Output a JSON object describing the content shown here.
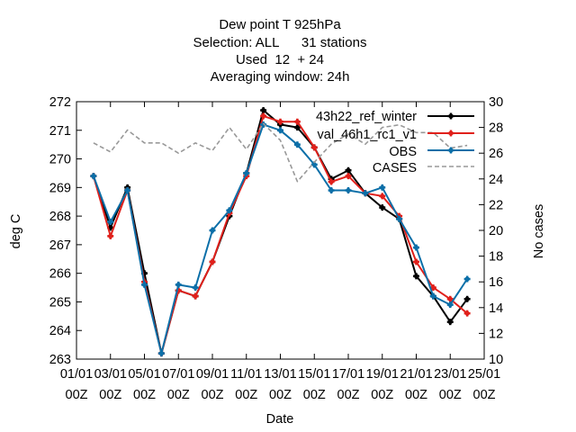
{
  "chart_data": {
    "type": "line",
    "title_lines": [
      "Dew point T 925hPa",
      "Selection: ALL      31 stations",
      "Used  12  + 24",
      "Averaging window: 24h"
    ],
    "xlabel": "Date",
    "ylabel": "deg C",
    "y2label": "No cases",
    "x_ticks": [
      {
        "day": 1,
        "line1": "01/01",
        "line2": "00Z"
      },
      {
        "day": 3,
        "line1": "03/01",
        "line2": "00Z"
      },
      {
        "day": 5,
        "line1": "05/01",
        "line2": "00Z"
      },
      {
        "day": 7,
        "line1": "07/01",
        "line2": "00Z"
      },
      {
        "day": 9,
        "line1": "09/01",
        "line2": "00Z"
      },
      {
        "day": 11,
        "line1": "11/01",
        "line2": "00Z"
      },
      {
        "day": 13,
        "line1": "13/01",
        "line2": "00Z"
      },
      {
        "day": 15,
        "line1": "15/01",
        "line2": "00Z"
      },
      {
        "day": 17,
        "line1": "17/01",
        "line2": "00Z"
      },
      {
        "day": 19,
        "line1": "19/01",
        "line2": "00Z"
      },
      {
        "day": 21,
        "line1": "21/01",
        "line2": "00Z"
      },
      {
        "day": 23,
        "line1": "23/01",
        "line2": "00Z"
      },
      {
        "day": 25,
        "line1": "25/01",
        "line2": "00Z"
      }
    ],
    "xlim": [
      1,
      25
    ],
    "ylim": [
      263,
      272
    ],
    "y_ticks": [
      263,
      264,
      265,
      266,
      267,
      268,
      269,
      270,
      271,
      272
    ],
    "y2lim": [
      10,
      30
    ],
    "y2_ticks": [
      10,
      12,
      14,
      16,
      18,
      20,
      22,
      24,
      26,
      28,
      30
    ],
    "legend_position": "top-right",
    "grid": false,
    "x": [
      2,
      3,
      4,
      5,
      6,
      7,
      8,
      9,
      10,
      11,
      12,
      13,
      14,
      15,
      16,
      17,
      18,
      19,
      20,
      21,
      22,
      23,
      24
    ],
    "series": [
      {
        "name": "43h22_ref_winter",
        "color": "#000000",
        "style": "solid",
        "axis": "left",
        "values": [
          269.4,
          267.6,
          269.0,
          266.0,
          263.2,
          265.4,
          265.2,
          266.4,
          268.0,
          269.5,
          271.7,
          271.2,
          271.1,
          270.4,
          269.3,
          269.6,
          268.8,
          268.3,
          267.9,
          265.9,
          265.2,
          264.3,
          265.1
        ]
      },
      {
        "name": "val_46h1_rc1_v1",
        "color": "#e0201b",
        "style": "solid",
        "axis": "left",
        "values": [
          269.4,
          267.3,
          268.9,
          265.7,
          263.2,
          265.4,
          265.2,
          266.4,
          268.1,
          269.4,
          271.5,
          271.3,
          271.3,
          270.4,
          269.2,
          269.4,
          268.8,
          268.7,
          268.0,
          266.4,
          265.5,
          265.1,
          264.6
        ]
      },
      {
        "name": "OBS",
        "color": "#0b6fa8",
        "style": "solid",
        "axis": "left",
        "values": [
          269.4,
          267.8,
          268.9,
          265.6,
          263.2,
          265.6,
          265.5,
          267.5,
          268.2,
          269.5,
          271.2,
          271.0,
          270.5,
          269.8,
          268.9,
          268.9,
          268.8,
          269.0,
          267.9,
          266.9,
          265.2,
          264.9,
          265.8
        ]
      },
      {
        "name": "CASES",
        "color": "#999999",
        "style": "dashed",
        "axis": "right",
        "x": [
          2,
          3,
          4,
          5,
          6,
          7,
          8,
          9,
          10,
          11,
          12,
          13,
          14,
          15,
          16,
          17,
          18,
          19,
          20,
          21,
          22,
          23,
          24
        ],
        "values": [
          26.8,
          26.1,
          27.8,
          26.8,
          26.8,
          26.0,
          26.8,
          26.2,
          28.0,
          26.3,
          28.3,
          27.0,
          23.8,
          25.3,
          26.7,
          27.5,
          26.7,
          28.0,
          28.2,
          27.6,
          27.6,
          26.4,
          26.6
        ]
      }
    ]
  }
}
